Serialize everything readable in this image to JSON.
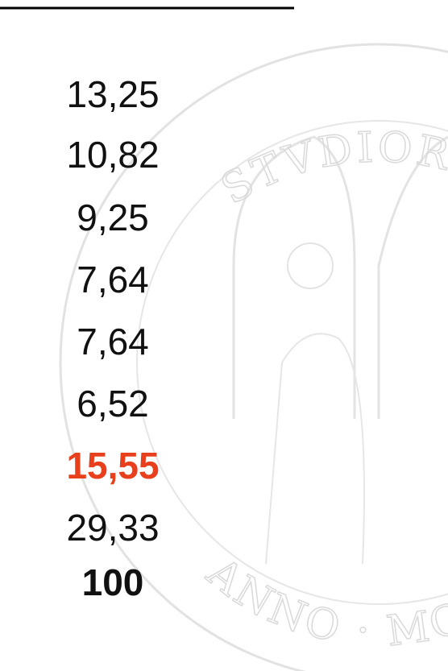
{
  "column": {
    "rows": [
      "13,25",
      "10,82",
      "9,25",
      "7,64",
      "7,64",
      "6,52",
      "15,55",
      "29,33",
      "100"
    ]
  },
  "watermark": {
    "top": "STVDIORVM",
    "bottom": "ANNO · MCCLX"
  }
}
